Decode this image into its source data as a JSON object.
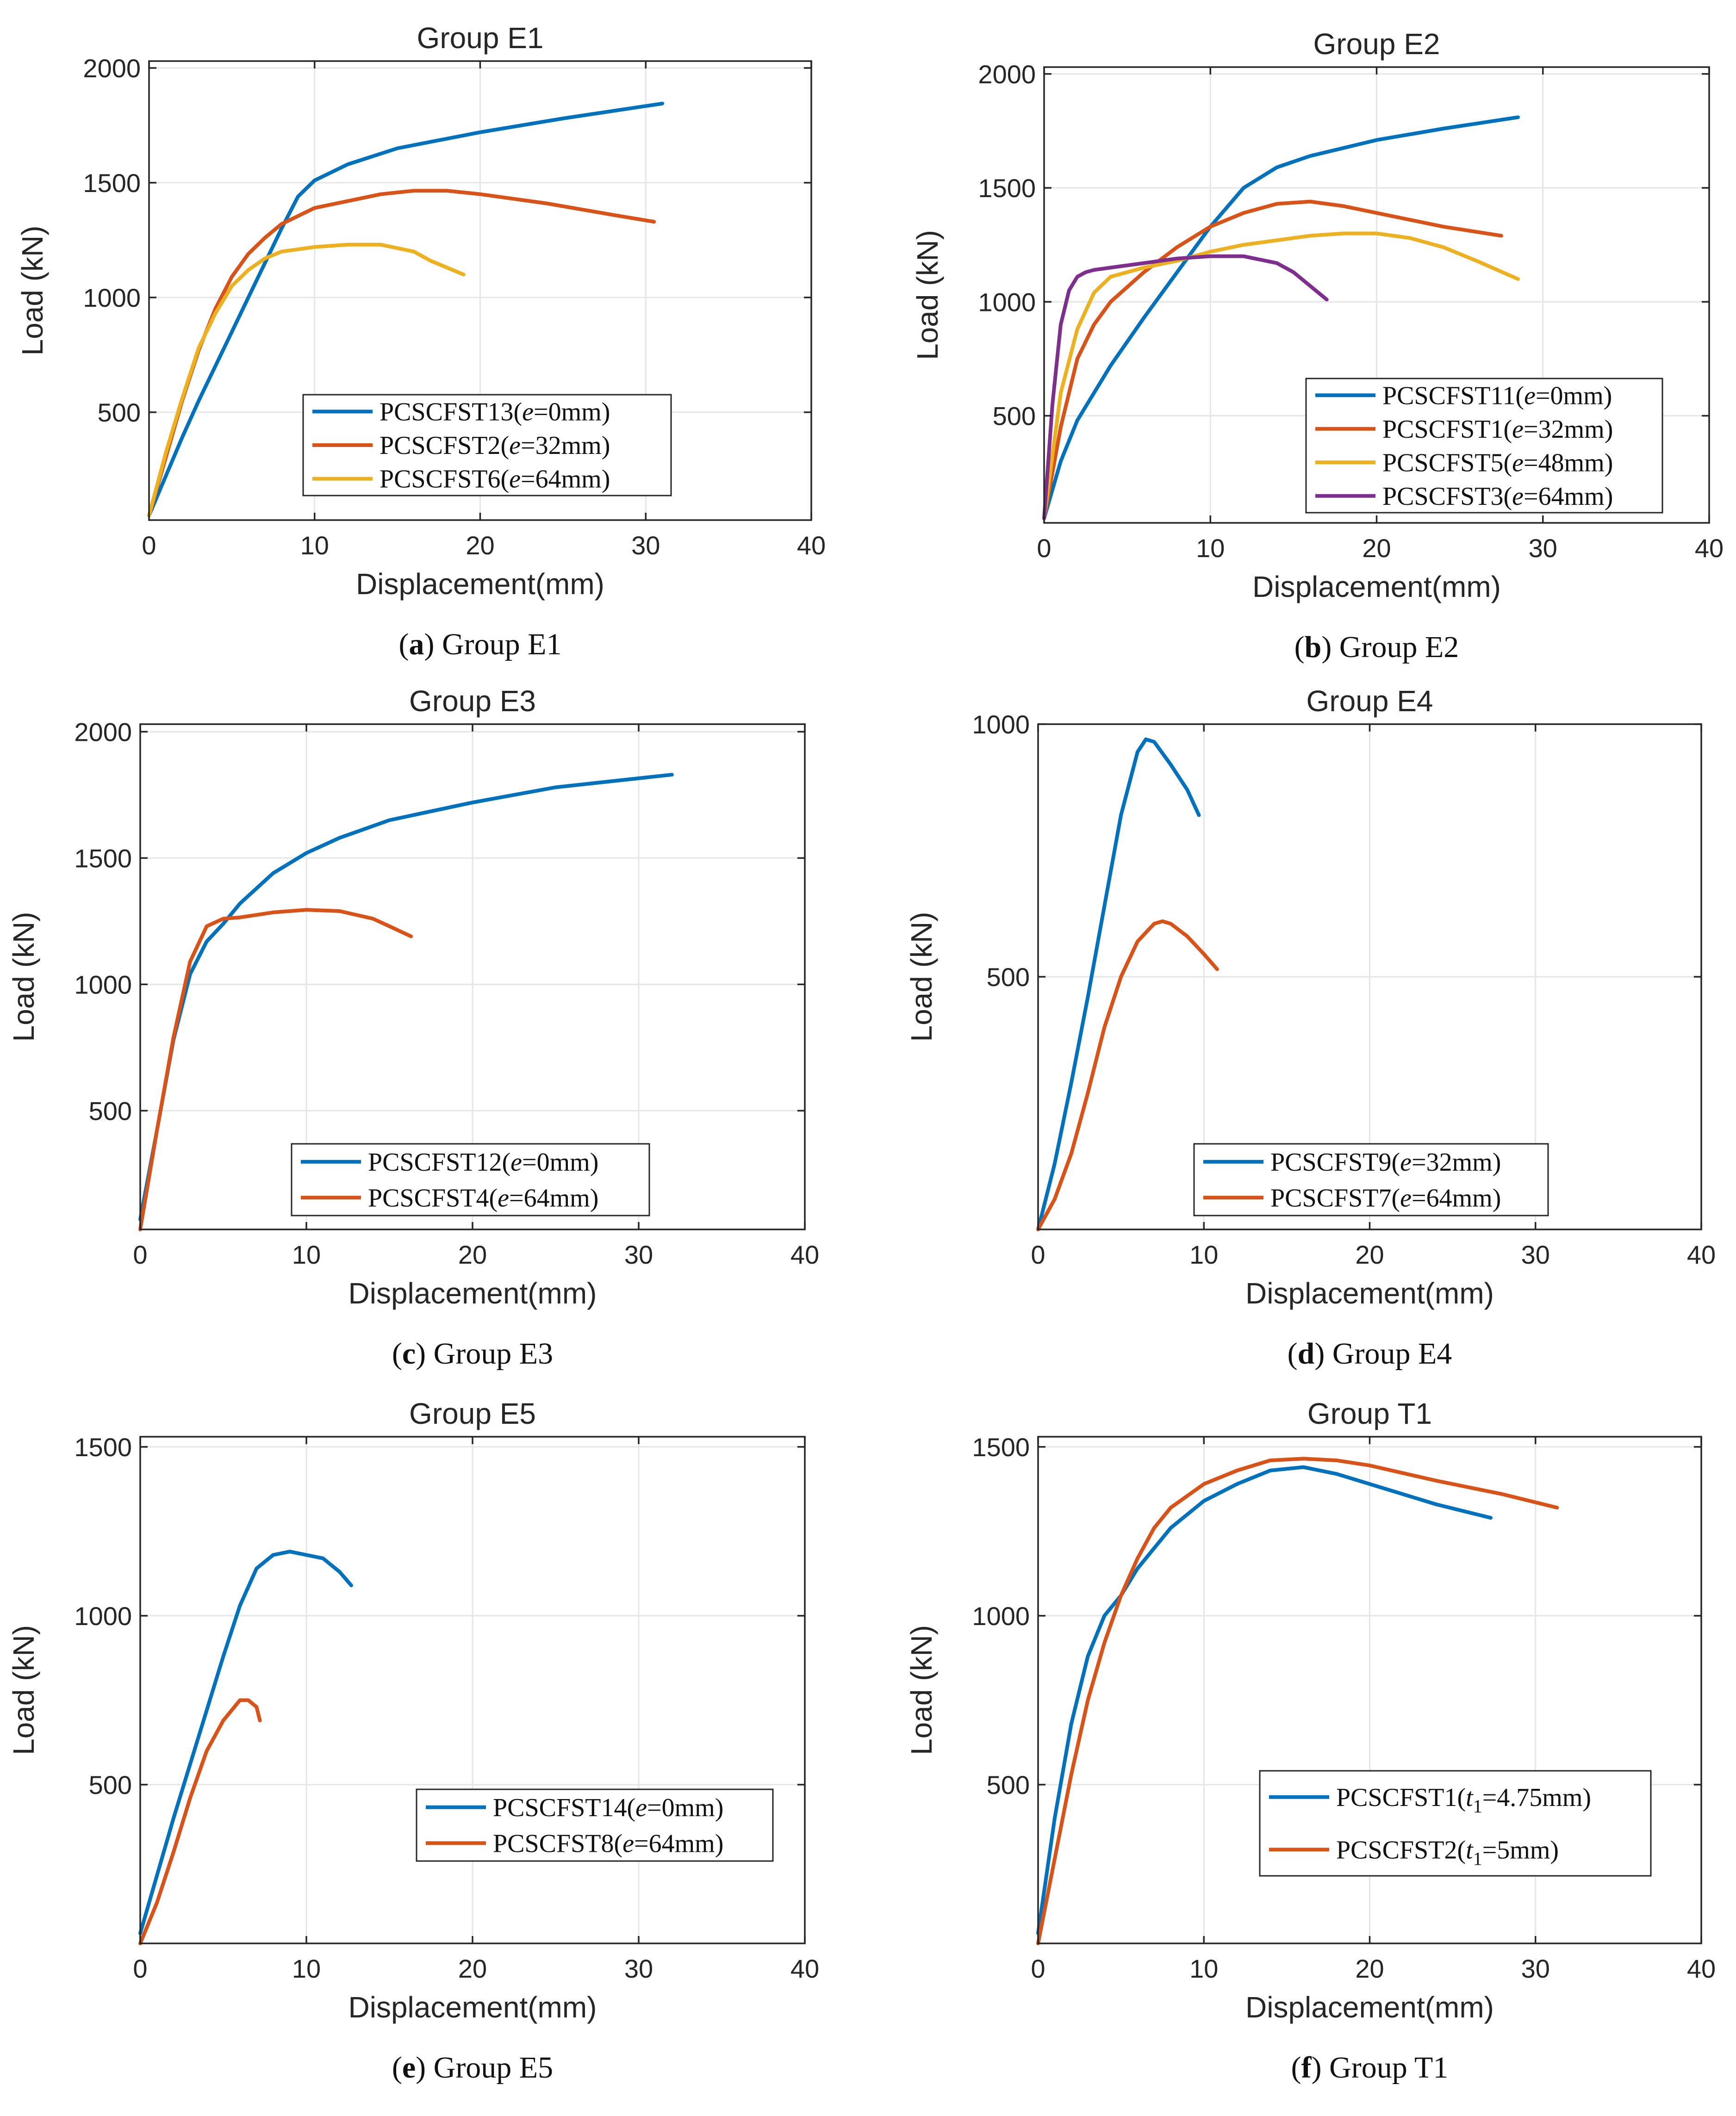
{
  "chart_data": [
    {
      "type": "line",
      "panel_id": "a",
      "title": "Group E1",
      "xlabel": "Displacement(mm)",
      "ylabel": "Load (kN)",
      "caption_letter": "a",
      "caption_text": "Group E1",
      "xlim": [
        0,
        40
      ],
      "ylim": [
        30,
        2030
      ],
      "xticks": [
        0,
        10,
        20,
        30,
        40
      ],
      "yticks": [
        500,
        1000,
        1500,
        2000
      ],
      "grid": true,
      "legend_position": "lower-center",
      "series": [
        {
          "name": "PCSCFST13",
          "legend_param": "e",
          "legend_value": "=0mm",
          "color": "#0072BD",
          "x": [
            0,
            1,
            2,
            3,
            4,
            5,
            6,
            7,
            8,
            9,
            10,
            12,
            15,
            20,
            25,
            31
          ],
          "y": [
            50,
            220,
            390,
            550,
            700,
            850,
            1000,
            1150,
            1300,
            1440,
            1510,
            1580,
            1650,
            1720,
            1780,
            1845
          ]
        },
        {
          "name": "PCSCFST2",
          "legend_param": "e",
          "legend_value": "=32mm",
          "color": "#D95319",
          "x": [
            0,
            1,
            2,
            3,
            4,
            5,
            6,
            7,
            8,
            10,
            12,
            14,
            16,
            18,
            20,
            24,
            28,
            30.5
          ],
          "y": [
            50,
            300,
            550,
            770,
            950,
            1090,
            1190,
            1260,
            1320,
            1390,
            1420,
            1450,
            1465,
            1465,
            1450,
            1410,
            1360,
            1330
          ]
        },
        {
          "name": "PCSCFST6",
          "legend_param": "e",
          "legend_value": "=64mm",
          "color": "#EDB120",
          "x": [
            0,
            1,
            2,
            3,
            4,
            5,
            6,
            7,
            8,
            10,
            12,
            14,
            16,
            17,
            19
          ],
          "y": [
            50,
            320,
            560,
            780,
            930,
            1050,
            1120,
            1170,
            1200,
            1220,
            1230,
            1230,
            1200,
            1160,
            1100
          ]
        }
      ]
    },
    {
      "type": "line",
      "panel_id": "b",
      "title": "Group E2",
      "xlabel": "Displacement(mm)",
      "ylabel": "Load (kN)",
      "caption_letter": "b",
      "caption_text": "Group E2",
      "xlim": [
        0,
        40
      ],
      "ylim": [
        30,
        2030
      ],
      "xticks": [
        0,
        10,
        20,
        30,
        40
      ],
      "yticks": [
        500,
        1000,
        1500,
        2000
      ],
      "grid": true,
      "legend_position": "lower-right",
      "series": [
        {
          "name": "PCSCFST11",
          "legend_param": "e",
          "legend_value": "=0mm",
          "color": "#0072BD",
          "x": [
            0,
            1,
            2,
            4,
            6,
            8,
            10,
            12,
            14,
            16,
            20,
            24,
            28.5
          ],
          "y": [
            50,
            300,
            480,
            720,
            930,
            1130,
            1330,
            1500,
            1590,
            1640,
            1710,
            1760,
            1810
          ]
        },
        {
          "name": "PCSCFST1",
          "legend_param": "e",
          "legend_value": "=32mm",
          "color": "#D95319",
          "x": [
            0,
            1,
            2,
            3,
            4,
            6,
            8,
            10,
            12,
            14,
            16,
            18,
            20,
            24,
            27.5
          ],
          "y": [
            50,
            450,
            750,
            900,
            1000,
            1130,
            1240,
            1330,
            1390,
            1430,
            1440,
            1420,
            1390,
            1330,
            1290
          ]
        },
        {
          "name": "PCSCFST5",
          "legend_param": "e",
          "legend_value": "=48mm",
          "color": "#EDB120",
          "x": [
            0,
            1,
            2,
            3,
            4,
            6,
            8,
            10,
            12,
            14,
            16,
            18,
            20,
            22,
            24,
            26,
            28.5
          ],
          "y": [
            50,
            600,
            880,
            1040,
            1110,
            1150,
            1180,
            1220,
            1250,
            1270,
            1290,
            1300,
            1300,
            1280,
            1240,
            1180,
            1100
          ]
        },
        {
          "name": "PCSCFST3",
          "legend_param": "e",
          "legend_value": "=64mm",
          "color": "#7E2F8E",
          "x": [
            0,
            0.5,
            1,
            1.5,
            2,
            2.5,
            3,
            4,
            6,
            8,
            10,
            12,
            14,
            15,
            17
          ],
          "y": [
            50,
            550,
            900,
            1050,
            1110,
            1130,
            1140,
            1150,
            1170,
            1190,
            1200,
            1200,
            1170,
            1130,
            1010
          ]
        }
      ]
    },
    {
      "type": "line",
      "panel_id": "c",
      "title": "Group E3",
      "xlabel": "Displacement(mm)",
      "ylabel": "Load (kN)",
      "caption_letter": "c",
      "caption_text": "Group E3",
      "xlim": [
        0,
        40
      ],
      "ylim": [
        30,
        2030
      ],
      "xticks": [
        0,
        10,
        20,
        30,
        40
      ],
      "yticks": [
        500,
        1000,
        1500,
        2000
      ],
      "grid": true,
      "legend_position": "lower-center",
      "series": [
        {
          "name": "PCSCFST12",
          "legend_param": "e",
          "legend_value": "=0mm",
          "color": "#0072BD",
          "x": [
            0,
            1,
            2,
            3,
            4,
            5,
            6,
            8,
            10,
            12,
            15,
            20,
            25,
            32
          ],
          "y": [
            70,
            420,
            780,
            1040,
            1170,
            1240,
            1320,
            1440,
            1520,
            1580,
            1650,
            1720,
            1780,
            1830
          ]
        },
        {
          "name": "PCSCFST4",
          "legend_param": "e",
          "legend_value": "=64mm",
          "color": "#D95319",
          "x": [
            0,
            1,
            2,
            3,
            4,
            5,
            6,
            8,
            10,
            12,
            14,
            15,
            16.3
          ],
          "y": [
            30,
            420,
            790,
            1090,
            1230,
            1260,
            1265,
            1285,
            1295,
            1290,
            1260,
            1230,
            1190
          ]
        }
      ]
    },
    {
      "type": "line",
      "panel_id": "d",
      "title": "Group E4",
      "xlabel": "Displacement(mm)",
      "ylabel": "Load (kN)",
      "caption_letter": "d",
      "caption_text": "Group E4",
      "xlim": [
        0,
        40
      ],
      "ylim": [
        0,
        1000
      ],
      "xticks": [
        0,
        10,
        20,
        30,
        40
      ],
      "yticks": [
        500,
        1000
      ],
      "grid": true,
      "legend_position": "lower-center",
      "series": [
        {
          "name": "PCSCFST9",
          "legend_param": "e",
          "legend_value": "=32mm",
          "color": "#0072BD",
          "x": [
            0,
            1,
            2,
            3,
            4,
            5,
            6,
            6.5,
            7,
            8,
            9,
            9.7
          ],
          "y": [
            0,
            130,
            290,
            460,
            640,
            820,
            945,
            970,
            965,
            920,
            870,
            820
          ]
        },
        {
          "name": "PCSCFST7",
          "legend_param": "e",
          "legend_value": "=64mm",
          "color": "#D95319",
          "x": [
            0,
            1,
            2,
            3,
            4,
            5,
            6,
            7,
            7.5,
            8,
            9,
            10,
            10.8
          ],
          "y": [
            0,
            60,
            150,
            270,
            400,
            500,
            570,
            605,
            610,
            605,
            580,
            545,
            515
          ]
        }
      ]
    },
    {
      "type": "line",
      "panel_id": "e",
      "title": "Group E5",
      "xlabel": "Displacement(mm)",
      "ylabel": "Load (kN)",
      "caption_letter": "e",
      "caption_text": "Group E5",
      "xlim": [
        0,
        40
      ],
      "ylim": [
        30,
        1530
      ],
      "xticks": [
        0,
        10,
        20,
        30,
        40
      ],
      "yticks": [
        500,
        1000,
        1500
      ],
      "grid": true,
      "legend_position": "lower-right",
      "series": [
        {
          "name": "PCSCFST14",
          "legend_param": "e",
          "legend_value": "=0mm",
          "color": "#0072BD",
          "x": [
            0,
            1,
            2,
            3,
            4,
            5,
            6,
            7,
            8,
            9,
            10,
            11,
            12,
            12.7
          ],
          "y": [
            60,
            230,
            400,
            560,
            720,
            880,
            1030,
            1140,
            1180,
            1190,
            1180,
            1170,
            1130,
            1090
          ]
        },
        {
          "name": "PCSCFST8",
          "legend_param": "e",
          "legend_value": "=64mm",
          "color": "#D95319",
          "x": [
            0,
            1,
            2,
            3,
            4,
            5,
            6,
            6.5,
            7,
            7.2
          ],
          "y": [
            30,
            150,
            300,
            460,
            600,
            690,
            750,
            750,
            730,
            690
          ]
        }
      ]
    },
    {
      "type": "line",
      "panel_id": "f",
      "title": "Group T1",
      "xlabel": "Displacement(mm)",
      "ylabel": "Load (kN)",
      "caption_letter": "f",
      "caption_text": "Group T1",
      "xlim": [
        0,
        40
      ],
      "ylim": [
        30,
        1530
      ],
      "xticks": [
        0,
        10,
        20,
        30,
        40
      ],
      "yticks": [
        500,
        1000,
        1500
      ],
      "grid": true,
      "legend_position": "lower-right",
      "series": [
        {
          "name": "PCSCFST1",
          "legend_param": "t",
          "legend_subscript": "1",
          "legend_value": "=4.75mm",
          "color": "#0072BD",
          "x": [
            0,
            1,
            2,
            3,
            4,
            5,
            6,
            8,
            10,
            12,
            14,
            16,
            18,
            20,
            24,
            27.3
          ],
          "y": [
            60,
            400,
            680,
            880,
            1000,
            1060,
            1140,
            1260,
            1340,
            1390,
            1430,
            1440,
            1420,
            1390,
            1330,
            1290
          ]
        },
        {
          "name": "PCSCFST2",
          "legend_param": "t",
          "legend_subscript": "1",
          "legend_value": "=5mm",
          "color": "#D95319",
          "x": [
            0,
            1,
            2,
            3,
            4,
            5,
            6,
            7,
            8,
            10,
            12,
            14,
            16,
            18,
            20,
            24,
            28,
            31.3
          ],
          "y": [
            30,
            280,
            530,
            750,
            920,
            1060,
            1170,
            1260,
            1320,
            1390,
            1430,
            1460,
            1465,
            1460,
            1445,
            1400,
            1360,
            1320
          ]
        }
      ]
    }
  ]
}
